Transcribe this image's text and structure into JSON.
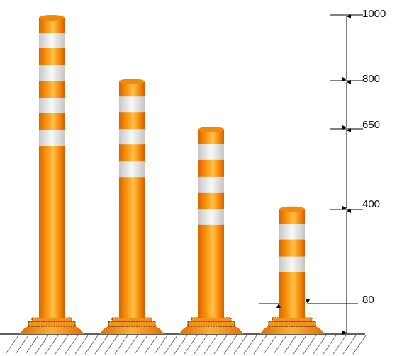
{
  "colors": {
    "post_dark": "#e06f00",
    "post_mid": "#ff9a12",
    "post_light": "#ffc04a",
    "band_light": "#f4f4f4",
    "band_dark": "#cfcfcf",
    "base": "#f08a10",
    "ring": "#3a2a10",
    "line": "#000000",
    "hatch": "#555555"
  },
  "dimensions": {
    "top_label": "1000",
    "second_label": "800",
    "third_label": "650",
    "fourth_label": "400",
    "diameter_label": "80"
  },
  "posts": [
    {
      "name": "post-1000",
      "height_mm": 1000,
      "bands": 4
    },
    {
      "name": "post-800",
      "height_mm": 800,
      "bands": 3
    },
    {
      "name": "post-650",
      "height_mm": 650,
      "bands": 3
    },
    {
      "name": "post-400",
      "height_mm": 400,
      "bands": 2
    }
  ]
}
